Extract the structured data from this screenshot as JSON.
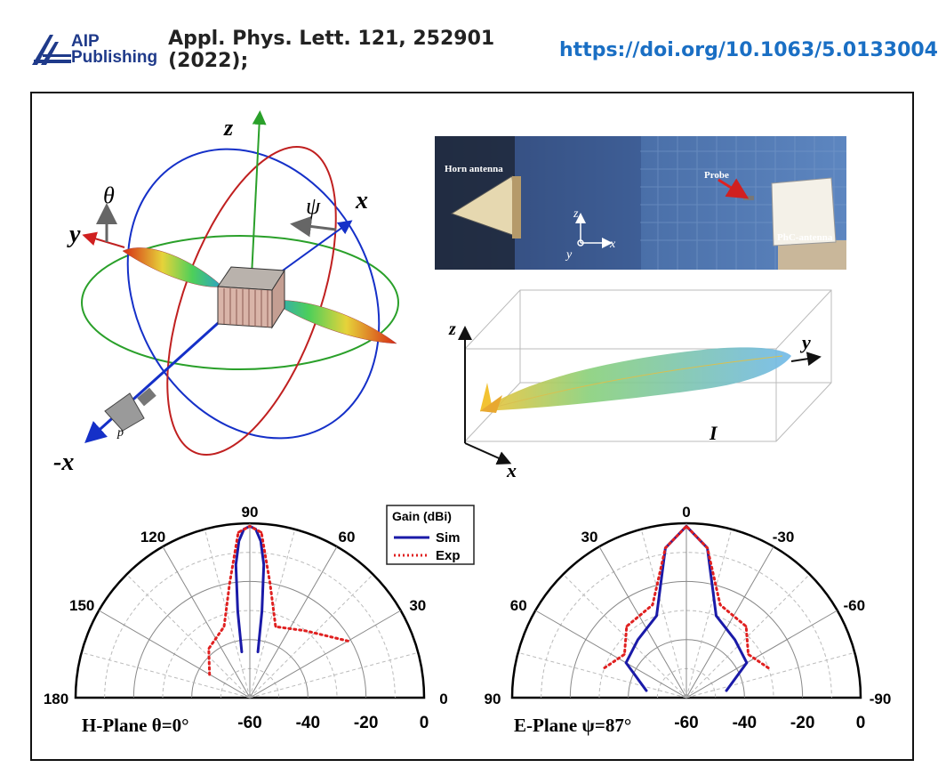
{
  "header": {
    "logo_line1": "AIP",
    "logo_line2": "Publishing",
    "citation": "Appl. Phys. Lett. 121, 252901 (2022);",
    "doi": "https://doi.org/10.1063/5.0133004"
  },
  "diagram3d": {
    "axis_z": "z",
    "axis_theta": "θ",
    "axis_psi": "ψ",
    "axis_x": "x",
    "axis_y": "y",
    "axis_negx": "-x",
    "probe_label": "p"
  },
  "photo": {
    "horn_label": "Horn antenna",
    "probe_label": "Probe",
    "phc_label": "PhC-antenna",
    "axis_z": "z",
    "axis_x": "x",
    "axis_y": "y"
  },
  "plot3d": {
    "axis_z": "z",
    "axis_y": "y",
    "axis_x": "x",
    "axis_I": "I"
  },
  "chart_data": [
    {
      "type": "polar",
      "title": "H-Plane θ=0°",
      "angle_ticks": [
        "180",
        "150",
        "120",
        "90",
        "60",
        "30",
        "0"
      ],
      "radial_ticks": [
        "-60",
        "-40",
        "-20",
        "0"
      ],
      "rlim": [
        -60,
        0
      ],
      "legend_title": "Gain (dBi)",
      "series": [
        {
          "name": "Sim",
          "color": "#1a1aa8",
          "style": "solid",
          "angles": [
            80,
            82,
            84,
            86,
            88,
            90,
            92,
            94,
            96,
            98,
            100
          ],
          "values": [
            -44,
            -30,
            -14,
            -6,
            -2,
            -1,
            -2,
            -6,
            -14,
            -30,
            -44
          ]
        },
        {
          "name": "Exp",
          "color": "#e02020",
          "style": "dotted",
          "angles": [
            30,
            50,
            70,
            80,
            86,
            90,
            94,
            100,
            110,
            130,
            150
          ],
          "values": [
            -21,
            -30,
            -34,
            -20,
            -3,
            -1,
            -3,
            -20,
            -34,
            -38,
            -44
          ]
        }
      ]
    },
    {
      "type": "polar",
      "title": "E-Plane ψ=87°",
      "angle_ticks": [
        "90",
        "60",
        "30",
        "0",
        "-30",
        "-60",
        "-90"
      ],
      "radial_ticks": [
        "-60",
        "-40",
        "-20",
        "0"
      ],
      "rlim": [
        -60,
        0
      ],
      "series": [
        {
          "name": "Sim",
          "color": "#1a1aa8",
          "style": "solid",
          "angles": [
            -80,
            -60,
            -40,
            -20,
            -8,
            0,
            8,
            20,
            40,
            60,
            80
          ],
          "values": [
            -46,
            -36,
            -34,
            -30,
            -8,
            -1,
            -8,
            -30,
            -34,
            -36,
            -46
          ]
        },
        {
          "name": "Exp",
          "color": "#e02020",
          "style": "dotted",
          "angles": [
            -70,
            -55,
            -40,
            -20,
            -8,
            0,
            8,
            20,
            40,
            55,
            70
          ],
          "values": [
            -30,
            -34,
            -28,
            -26,
            -8,
            -1,
            -8,
            -26,
            -28,
            -34,
            -30
          ]
        }
      ]
    }
  ]
}
